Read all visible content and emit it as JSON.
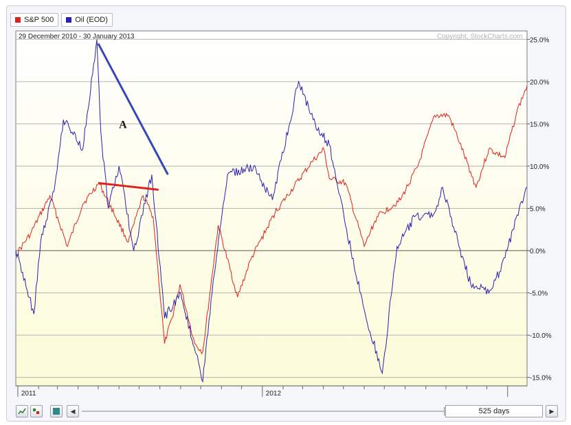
{
  "legend": [
    {
      "label": "S&P 500",
      "color": "#e0201b"
    },
    {
      "label": "Oil (EOD)",
      "color": "#2a1fb0"
    }
  ],
  "range_label": "29 December 2010 - 30 January 2013",
  "copyright": "Copyright, StockCharts.com",
  "annotation_label": "A",
  "toolbar": {
    "days_label": "525 days"
  },
  "chart_data": {
    "type": "line",
    "ylim": [
      -16.0,
      26.0
    ],
    "yticks": [
      "25.0%",
      "20.0%",
      "15.0%",
      "10.0%",
      "5.0%",
      "0.0%",
      "-5.0%",
      "-10.0%",
      "-15.0%"
    ],
    "ytick_values": [
      25,
      20,
      15,
      10,
      5,
      0,
      -5,
      -10,
      -15
    ],
    "xtick_labels": [
      "2011",
      "2012"
    ],
    "xtick_dates": [
      "2011-01-03",
      "2012-01-03"
    ],
    "x_range": [
      "2010-12-29",
      "2013-01-30"
    ],
    "series": [
      {
        "name": "S&P 500",
        "color": "#e0201b",
        "x": [
          "2010-12-29",
          "2011-01-20",
          "2011-02-18",
          "2011-03-16",
          "2011-04-08",
          "2011-05-02",
          "2011-06-15",
          "2011-07-07",
          "2011-07-22",
          "2011-08-08",
          "2011-08-19",
          "2011-08-31",
          "2011-09-22",
          "2011-10-04",
          "2011-10-27",
          "2011-11-25",
          "2011-12-15",
          "2012-01-20",
          "2012-03-15",
          "2012-04-02",
          "2012-04-10",
          "2012-05-04",
          "2012-06-01",
          "2012-06-20",
          "2012-07-25",
          "2012-08-20",
          "2012-09-14",
          "2012-10-05",
          "2012-10-18",
          "2012-11-15",
          "2012-12-04",
          "2012-12-28",
          "2013-01-15",
          "2013-01-30"
        ],
        "y": [
          -0.5,
          2.0,
          6.5,
          0.5,
          5.5,
          8.0,
          1.0,
          6.5,
          4.0,
          -11.0,
          -8.0,
          -4.0,
          -11.0,
          -12.0,
          3.0,
          -5.5,
          -1.0,
          4.5,
          10.5,
          12.0,
          8.5,
          8.0,
          0.5,
          4.0,
          6.0,
          10.0,
          16.0,
          16.0,
          13.5,
          7.5,
          12.0,
          11.0,
          16.5,
          19.5
        ]
      },
      {
        "name": "Oil (EOD)",
        "color": "#2a1fb0",
        "x": [
          "2010-12-29",
          "2011-01-25",
          "2011-02-04",
          "2011-02-24",
          "2011-03-10",
          "2011-04-08",
          "2011-04-29",
          "2011-05-05",
          "2011-05-16",
          "2011-06-01",
          "2011-06-23",
          "2011-07-20",
          "2011-08-08",
          "2011-09-01",
          "2011-09-23",
          "2011-10-04",
          "2011-10-18",
          "2011-11-10",
          "2011-12-19",
          "2012-01-16",
          "2012-02-24",
          "2012-03-20",
          "2012-04-10",
          "2012-05-04",
          "2012-06-01",
          "2012-06-28",
          "2012-07-20",
          "2012-08-15",
          "2012-09-14",
          "2012-09-26",
          "2012-10-19",
          "2012-11-07",
          "2012-12-04",
          "2012-12-20",
          "2013-01-30"
        ],
        "y": [
          0.0,
          -7.5,
          1.0,
          7.0,
          15.5,
          12.0,
          25.0,
          14.0,
          5.0,
          10.0,
          0.0,
          9.0,
          -8.0,
          -5.0,
          -12.0,
          -15.5,
          -5.0,
          9.0,
          10.0,
          6.0,
          20.0,
          15.0,
          12.5,
          3.0,
          -7.0,
          -14.5,
          0.5,
          4.0,
          4.5,
          7.5,
          1.0,
          -4.0,
          -5.0,
          -2.5,
          7.5
        ]
      }
    ]
  },
  "annotations": [
    {
      "type": "trendline",
      "color": "#3447b7",
      "from": {
        "x": "2011-05-01",
        "y": 24.5
      },
      "to": {
        "x": "2011-08-13",
        "y": 9.0
      }
    },
    {
      "type": "trendline",
      "color": "#e0201b",
      "from": {
        "x": "2011-05-01",
        "y": 8.0
      },
      "to": {
        "x": "2011-07-30",
        "y": 7.2
      }
    },
    {
      "type": "label",
      "text_key": "annotation_label",
      "x": "2011-06-01",
      "y": 14.5
    }
  ]
}
